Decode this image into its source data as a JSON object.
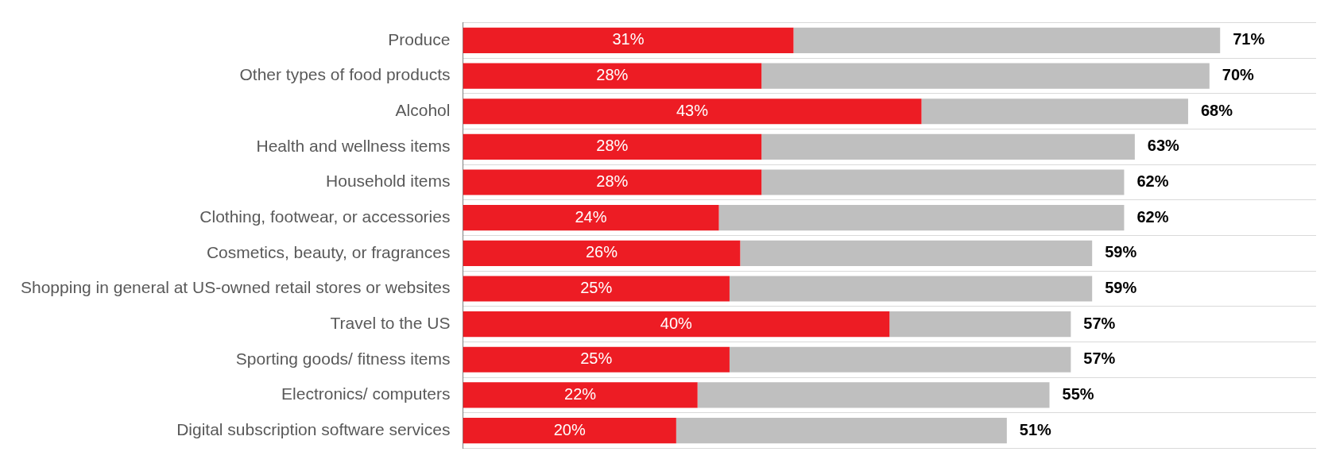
{
  "chart_data": {
    "type": "bar",
    "orientation": "horizontal",
    "stacked": true,
    "categories": [
      "Produce",
      "Other types of food products",
      "Alcohol",
      "Health and wellness items",
      "Household items",
      "Clothing, footwear, or accessories",
      "Cosmetics, beauty, or fragrances",
      "Shopping in general at US-owned retail stores or websites",
      "Travel to the US",
      "Sporting goods/ fitness items",
      "Electronics/ computers",
      "Digital subscription software services"
    ],
    "series": [
      {
        "color": "#ed1c24",
        "values": [
          31,
          28,
          43,
          28,
          28,
          24,
          26,
          25,
          40,
          25,
          22,
          20
        ],
        "value_labels": [
          "31%",
          "28%",
          "43%",
          "28%",
          "28%",
          "24%",
          "26%",
          "25%",
          "40%",
          "25%",
          "22%",
          "20%"
        ]
      },
      {
        "color": "#bfbfbf",
        "values": [
          40,
          42,
          25,
          35,
          34,
          38,
          33,
          34,
          17,
          32,
          33,
          31
        ]
      }
    ],
    "totals": [
      "71%",
      "70%",
      "68%",
      "63%",
      "62%",
      "62%",
      "59%",
      "59%",
      "57%",
      "57%",
      "55%",
      "51%"
    ],
    "xlim": [
      0,
      80
    ],
    "grid": "y",
    "legend": false,
    "tick_labels": "y"
  }
}
